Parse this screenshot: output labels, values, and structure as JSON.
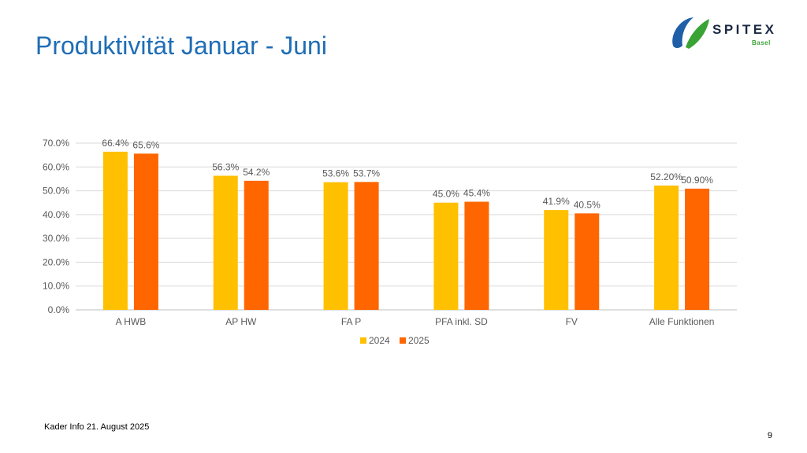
{
  "slide": {
    "title": "Produktivität Januar - Juni",
    "footer": "Kader Info 21. August 2025",
    "page_number": "9"
  },
  "logo": {
    "name": "SPITEX",
    "subtitle": "Basel",
    "colors": {
      "blue": "#1f5fa8",
      "green": "#3aa335",
      "text": "#1b2a44"
    }
  },
  "colors": {
    "title": "#1f6db5",
    "series_2024": "#ffc000",
    "series_2025": "#ff6600",
    "grid": "#d9d9d9",
    "axis_text": "#595959"
  },
  "chart_data": {
    "type": "bar",
    "categories": [
      "A HWB",
      "AP HW",
      "FA P",
      "PFA inkl. SD",
      "FV",
      "Alle Funktionen"
    ],
    "series": [
      {
        "name": "2024",
        "values": [
          66.4,
          56.3,
          53.6,
          45.0,
          41.9,
          52.2
        ],
        "labels": [
          "66.4%",
          "56.3%",
          "53.6%",
          "45.0%",
          "41.9%",
          "52.20%"
        ]
      },
      {
        "name": "2025",
        "values": [
          65.6,
          54.2,
          53.7,
          45.4,
          40.5,
          50.9
        ],
        "labels": [
          "65.6%",
          "54.2%",
          "53.7%",
          "45.4%",
          "40.5%",
          "50.90%"
        ]
      }
    ],
    "y_ticks": [
      "0.0%",
      "10.0%",
      "20.0%",
      "30.0%",
      "40.0%",
      "50.0%",
      "60.0%",
      "70.0%"
    ],
    "ylim": [
      0,
      70
    ],
    "grid": true,
    "legend_position": "bottom"
  }
}
